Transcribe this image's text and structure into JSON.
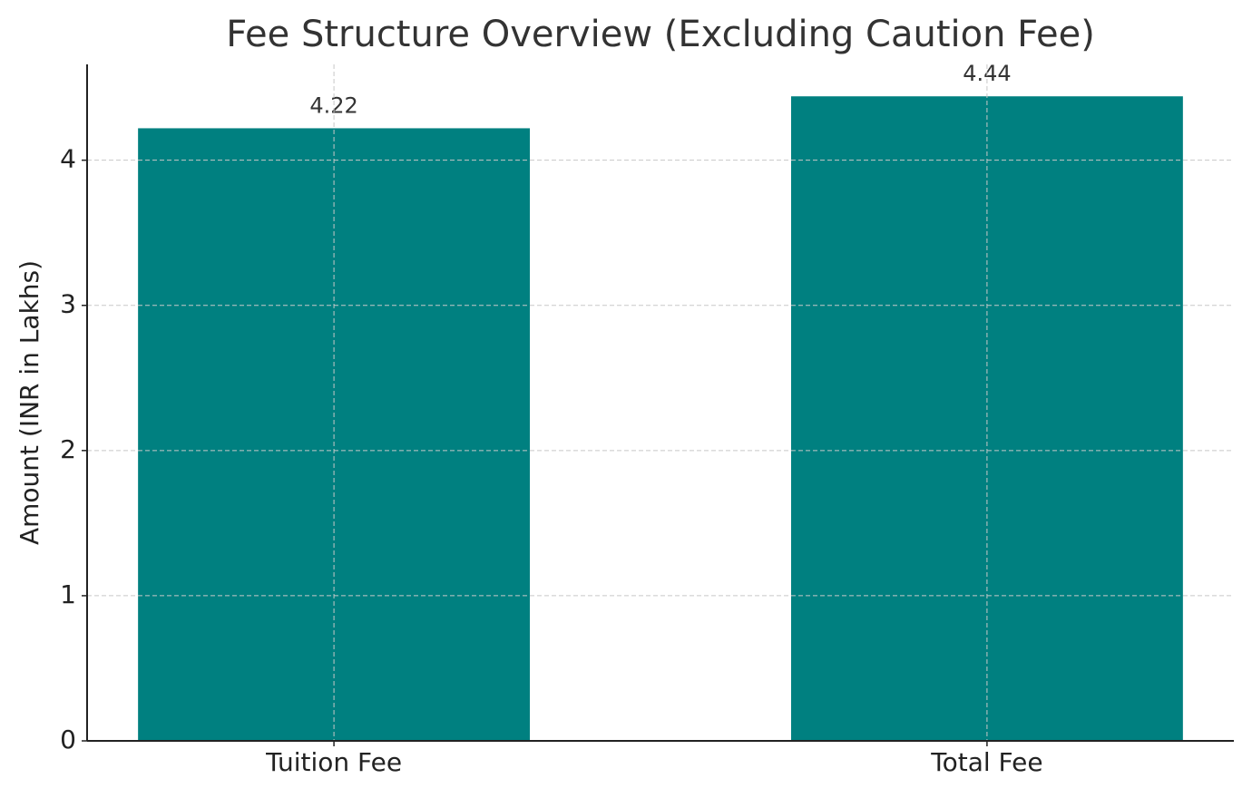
{
  "chart_data": {
    "type": "bar",
    "title": "Fee Structure Overview (Excluding Caution Fee)",
    "y_label": "Amount (INR in Lakhs)",
    "categories": [
      "Tuition Fee",
      "Total Fee"
    ],
    "values": [
      4.22,
      4.44
    ],
    "color": "#008080",
    "ylim": [
      0,
      4.66
    ],
    "yticks": [
      0,
      1,
      2,
      3,
      4
    ],
    "grid": true
  }
}
